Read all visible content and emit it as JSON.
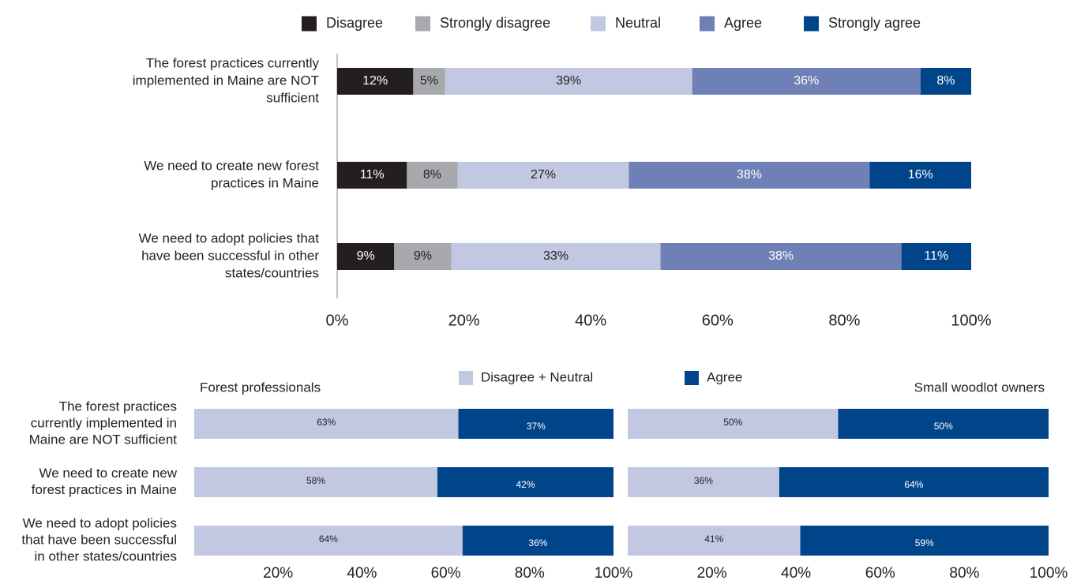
{
  "chart_data": [
    {
      "type": "bar",
      "orientation": "horizontal",
      "stacked": true,
      "categories": [
        "The forest practices currently implemented in Maine are NOT sufficient",
        "We need to create new forest practices in Maine",
        "We need to adopt policies that have been successful in other states/countries"
      ],
      "category_lines": [
        [
          "The forest practices currently",
          "implemented in Maine are NOT",
          "sufficient"
        ],
        [
          "We need to create new forest",
          "practices in Maine"
        ],
        [
          "We need to adopt policies that",
          "have been successful in other",
          "states/countries"
        ]
      ],
      "series": [
        {
          "name": "Disagree",
          "values": [
            12,
            11,
            9
          ],
          "labels": [
            "12%",
            "11%",
            "9%"
          ]
        },
        {
          "name": "Strongly disagree",
          "values": [
            5,
            8,
            9
          ],
          "labels": [
            "5%",
            "8%",
            "9%"
          ]
        },
        {
          "name": "Neutral",
          "values": [
            39,
            27,
            33
          ],
          "labels": [
            "39%",
            "27%",
            "33%"
          ]
        },
        {
          "name": "Agree",
          "values": [
            36,
            38,
            38
          ],
          "labels": [
            "36%",
            "38%",
            "38%"
          ]
        },
        {
          "name": "Strongly agree",
          "values": [
            8,
            16,
            11
          ],
          "labels": [
            "8%",
            "16%",
            "11%"
          ]
        }
      ],
      "xlim": [
        0,
        100
      ],
      "ticks": [
        "0%",
        "20%",
        "40%",
        "60%",
        "80%",
        "100%"
      ],
      "legend_position": "top",
      "colors": [
        "#231f20",
        "#a7a9ac",
        "#c3c8e2",
        "#6e80b5",
        "#00458a"
      ]
    },
    {
      "type": "bar",
      "orientation": "horizontal",
      "stacked": true,
      "title": "Forest professionals",
      "categories": [
        "The forest practices currently implemented in Maine are NOT sufficient",
        "We need to create new forest practices in Maine",
        "We need to adopt policies that have been successful in other states/countries"
      ],
      "category_lines": [
        [
          "The forest practices",
          "currently implemented in",
          "Maine are NOT sufficient"
        ],
        [
          "We need to create new",
          "forest practices in Maine"
        ],
        [
          "We need to adopt policies",
          "that have been successful",
          "in other states/countries"
        ]
      ],
      "series": [
        {
          "name": "Disagree + Neutral",
          "values": [
            63,
            58,
            64
          ],
          "labels": [
            "63%",
            "58%",
            "64%"
          ]
        },
        {
          "name": "Agree",
          "values": [
            37,
            42,
            36
          ],
          "labels": [
            "37%",
            "42%",
            "36%"
          ]
        }
      ],
      "xlim": [
        0,
        100
      ],
      "ticks": [
        "20%",
        "40%",
        "60%",
        "80%",
        "100%"
      ],
      "legend_position": "top",
      "colors": [
        "#c3c8e2",
        "#00458a"
      ]
    },
    {
      "type": "bar",
      "orientation": "horizontal",
      "stacked": true,
      "title": "Small woodlot owners",
      "series": [
        {
          "name": "Disagree + Neutral",
          "values": [
            50,
            36,
            41
          ],
          "labels": [
            "50%",
            "36%",
            "41%"
          ]
        },
        {
          "name": "Agree",
          "values": [
            50,
            64,
            59
          ],
          "labels": [
            "50%",
            "64%",
            "59%"
          ]
        }
      ],
      "xlim": [
        0,
        100
      ],
      "ticks": [
        "20%",
        "40%",
        "60%",
        "80%",
        "100%"
      ],
      "colors": [
        "#c3c8e2",
        "#00458a"
      ]
    }
  ],
  "text_colors": {
    "dark": "#222222",
    "light": "#ffffff"
  },
  "axis_color": "#888888"
}
